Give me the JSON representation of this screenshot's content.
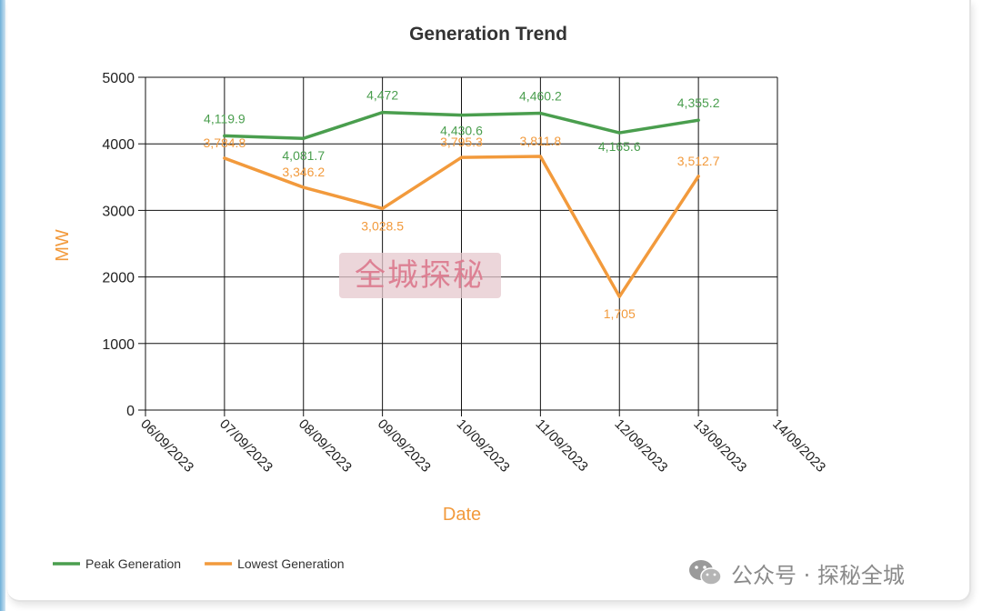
{
  "chart_data": {
    "type": "line",
    "title": "Generation Trend",
    "xlabel": "Date",
    "ylabel": "MW",
    "ylim": [
      0,
      5000
    ],
    "yticks": [
      0,
      1000,
      2000,
      3000,
      4000,
      5000
    ],
    "x_tick_labels": [
      "06/09/2023",
      "07/09/2023",
      "08/09/2023",
      "09/09/2023",
      "10/09/2023",
      "11/09/2023",
      "12/09/2023",
      "13/09/2023",
      "14/09/2023"
    ],
    "categories": [
      "07/09/2023",
      "08/09/2023",
      "09/09/2023",
      "10/09/2023",
      "11/09/2023",
      "12/09/2023",
      "13/09/2023"
    ],
    "grid": true,
    "legend_position": "bottom-left",
    "series": [
      {
        "name": "Peak Generation",
        "color": "#4a9e4e",
        "values": [
          4119.9,
          4081.7,
          4472,
          4430.6,
          4460.2,
          4165.6,
          4355.2
        ],
        "labels": [
          "4,119.9",
          "4,081.7",
          "4,472",
          "4,430.6",
          "4,460.2",
          "4,165.6",
          "4,355.2"
        ]
      },
      {
        "name": "Lowest Generation",
        "color": "#f29a3c",
        "values": [
          3784.8,
          3346.2,
          3028.5,
          3795.3,
          3811.8,
          1705,
          3512.7
        ],
        "labels": [
          "3,784.8",
          "3,346.2",
          "3,028.5",
          "3,795.3",
          "3,811.8",
          "1,705",
          "3,512.7"
        ]
      }
    ]
  },
  "watermark": "全城探秘",
  "footer": {
    "icon": "wechat-icon",
    "text": "公众号 · 探秘全城"
  }
}
